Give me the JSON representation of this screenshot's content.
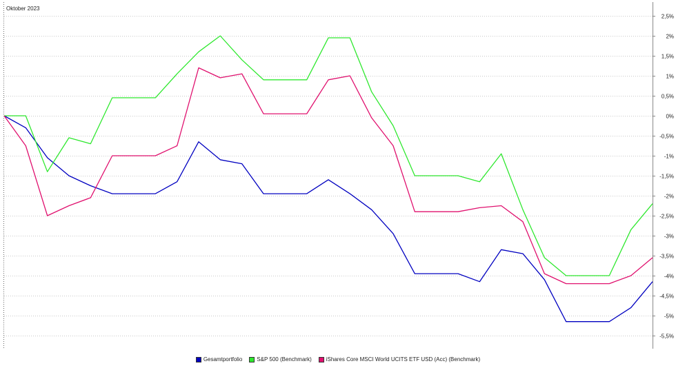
{
  "chart_data": {
    "type": "line",
    "period_label": "Oktober 2023",
    "ylim": [
      -5.5,
      2.5
    ],
    "yticks": [
      {
        "value": 2.5,
        "label": "2,5%"
      },
      {
        "value": 2,
        "label": "2%"
      },
      {
        "value": 1.5,
        "label": "1,5%"
      },
      {
        "value": 1,
        "label": "1%"
      },
      {
        "value": 0.5,
        "label": "0,5%"
      },
      {
        "value": 0,
        "label": "0%"
      },
      {
        "value": -0.5,
        "label": "-0,5%"
      },
      {
        "value": -1,
        "label": "-1%"
      },
      {
        "value": -1.5,
        "label": "-1,5%"
      },
      {
        "value": -2,
        "label": "-2%"
      },
      {
        "value": -2.5,
        "label": "-2,5%"
      },
      {
        "value": -3,
        "label": "-3%"
      },
      {
        "value": -3.5,
        "label": "-3,5%"
      },
      {
        "value": -4,
        "label": "-4%"
      },
      {
        "value": -4.5,
        "label": "-4,5%"
      },
      {
        "value": -5,
        "label": "-5%"
      },
      {
        "value": -5.5,
        "label": "-5,5%"
      }
    ],
    "grid": true,
    "legend_position": "bottom-center",
    "x": [
      0,
      1,
      2,
      3,
      4,
      5,
      6,
      7,
      8,
      9,
      10,
      11,
      12,
      13,
      14,
      15,
      16,
      17,
      18,
      19,
      20,
      21,
      22,
      23,
      24,
      25,
      26,
      27,
      28,
      29,
      30
    ],
    "series": [
      {
        "name": "Gesamtportfolio",
        "color": "#0000c0",
        "values": [
          0,
          -0.3,
          -1.05,
          -1.5,
          -1.75,
          -1.95,
          -1.95,
          -1.95,
          -1.65,
          -0.65,
          -1.1,
          -1.2,
          -1.95,
          -1.95,
          -1.95,
          -1.6,
          -1.95,
          -2.35,
          -2.95,
          -3.95,
          -3.95,
          -3.95,
          -4.15,
          -3.35,
          -3.45,
          -4.1,
          -5.15,
          -5.15,
          -5.15,
          -4.8,
          -4.15
        ]
      },
      {
        "name": "S&P 500 (Benchmark)",
        "color": "#2ee82e",
        "values": [
          0,
          0,
          -1.4,
          -0.55,
          -0.7,
          0.45,
          0.45,
          0.45,
          1.05,
          1.6,
          2.0,
          1.4,
          0.9,
          0.9,
          0.9,
          1.95,
          1.95,
          0.6,
          -0.25,
          -1.5,
          -1.5,
          -1.5,
          -1.65,
          -0.95,
          -2.35,
          -3.55,
          -4.0,
          -4.0,
          -4.0,
          -2.85,
          -2.2
        ]
      },
      {
        "name": "iShares Core MSCI World UCITS ETF USD (Acc) (Benchmark)",
        "color": "#e0106e",
        "values": [
          0,
          -0.75,
          -2.5,
          -2.25,
          -2.05,
          -1.0,
          -1.0,
          -1.0,
          -0.75,
          1.2,
          0.95,
          1.05,
          0.05,
          0.05,
          0.05,
          0.9,
          1.0,
          -0.05,
          -0.75,
          -2.4,
          -2.4,
          -2.4,
          -2.3,
          -2.25,
          -2.65,
          -3.95,
          -4.2,
          -4.2,
          -4.2,
          -4.0,
          -3.55
        ]
      }
    ]
  }
}
